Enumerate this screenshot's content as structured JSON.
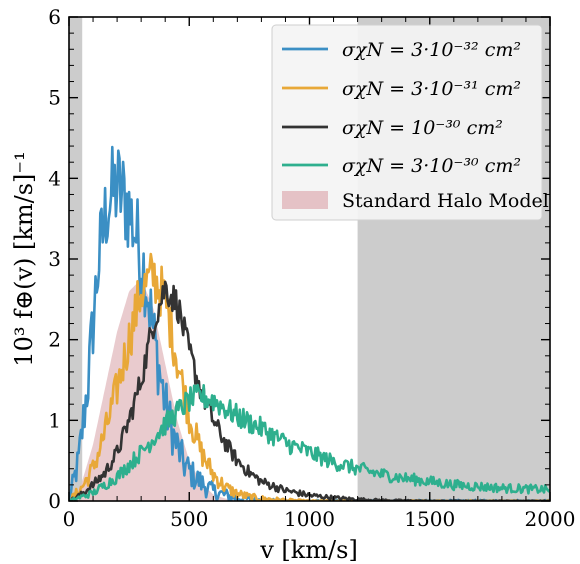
{
  "chart_data": {
    "type": "line",
    "xlabel": "v [km/s]",
    "ylabel": "10³ f⊕(v) [km/s]⁻¹",
    "xlim": [
      0,
      2000
    ],
    "ylim": [
      0,
      6
    ],
    "xticks": [
      0,
      500,
      1000,
      1500,
      2000
    ],
    "yticks": [
      0,
      1,
      2,
      3,
      4,
      5,
      6
    ],
    "xtick_labels": [
      "0",
      "500",
      "1000",
      "1500",
      "2000"
    ],
    "ytick_labels": [
      "0",
      "1",
      "2",
      "3",
      "4",
      "5",
      "6"
    ],
    "shaded_regions": [
      {
        "x": [
          0,
          55
        ],
        "color": "#cccccc"
      },
      {
        "x": [
          1200,
          2000
        ],
        "color": "#cccccc"
      }
    ],
    "legend_position": "top-right",
    "series": [
      {
        "name": "σχN = 3·10⁻³² cm²",
        "color": "#3b8fc4",
        "noise": 0.45,
        "x": [
          0,
          40,
          80,
          120,
          160,
          200,
          240,
          280,
          320,
          360,
          400,
          440,
          480,
          520,
          560,
          600,
          640,
          680,
          720,
          800,
          900,
          1000
        ],
        "y": [
          0.0,
          0.5,
          1.5,
          2.9,
          3.7,
          3.9,
          3.7,
          3.3,
          2.75,
          1.9,
          1.2,
          0.75,
          0.45,
          0.3,
          0.2,
          0.12,
          0.08,
          0.05,
          0.03,
          0.01,
          0.0,
          0.0
        ]
      },
      {
        "name": "σχN = 3·10⁻³¹ cm²",
        "color": "#e8a838",
        "noise": 0.3,
        "x": [
          0,
          50,
          100,
          150,
          200,
          250,
          300,
          350,
          400,
          450,
          500,
          550,
          600,
          650,
          700,
          750,
          800,
          900,
          1000
        ],
        "y": [
          0.0,
          0.15,
          0.4,
          0.85,
          1.4,
          2.0,
          2.6,
          2.8,
          2.5,
          1.75,
          1.05,
          0.6,
          0.33,
          0.17,
          0.09,
          0.05,
          0.03,
          0.01,
          0.0
        ]
      },
      {
        "name": "σχN = 10⁻³⁰ cm²",
        "color": "#333333",
        "noise": 0.18,
        "x": [
          0,
          50,
          100,
          150,
          200,
          250,
          300,
          350,
          400,
          450,
          500,
          550,
          600,
          650,
          700,
          750,
          800,
          900,
          1000,
          1100,
          1200,
          1300,
          1500
        ],
        "y": [
          0.0,
          0.08,
          0.2,
          0.35,
          0.6,
          1.0,
          1.5,
          2.2,
          2.65,
          2.45,
          1.85,
          1.35,
          1.0,
          0.72,
          0.5,
          0.35,
          0.24,
          0.13,
          0.07,
          0.04,
          0.02,
          0.01,
          0.0
        ]
      },
      {
        "name": "σχN = 3·10⁻³⁰ cm²",
        "color": "#2eaf8e",
        "noise": 0.2,
        "x": [
          0,
          100,
          200,
          300,
          400,
          500,
          550,
          600,
          700,
          800,
          900,
          1000,
          1100,
          1200,
          1300,
          1400,
          1500,
          1600,
          1700,
          1800,
          1900,
          2000
        ],
        "y": [
          0.0,
          0.1,
          0.3,
          0.6,
          0.95,
          1.25,
          1.3,
          1.25,
          1.05,
          0.9,
          0.72,
          0.6,
          0.48,
          0.4,
          0.33,
          0.28,
          0.24,
          0.2,
          0.18,
          0.16,
          0.15,
          0.14
        ]
      }
    ],
    "area_series": {
      "name": "Standard Halo Model",
      "color": "#e5c2c6",
      "x": [
        0,
        50,
        100,
        150,
        200,
        250,
        300,
        350,
        400,
        450,
        500,
        550,
        600,
        650,
        700,
        750,
        800
      ],
      "y": [
        0.0,
        0.2,
        0.7,
        1.4,
        2.1,
        2.6,
        2.75,
        2.4,
        1.7,
        1.0,
        0.5,
        0.22,
        0.08,
        0.03,
        0.01,
        0.0,
        0.0
      ]
    }
  }
}
